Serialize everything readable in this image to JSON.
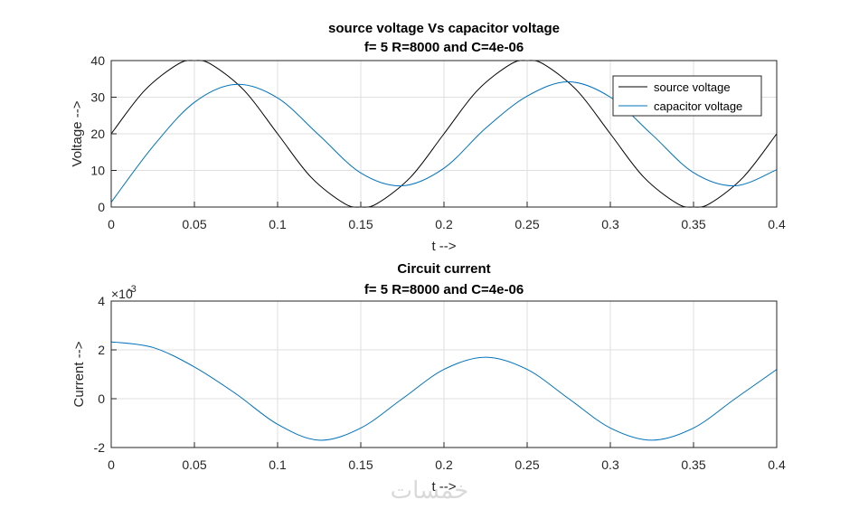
{
  "watermark": "خمسات",
  "chart_data": [
    {
      "type": "line",
      "title": "source voltage Vs capacitor voltage",
      "subtitle": "f= 5   R=8000 and C=4e-06",
      "xlabel": "t -->",
      "ylabel": "Voltage -->",
      "xlim": [
        0,
        0.4
      ],
      "ylim": [
        0,
        40
      ],
      "xticks": [
        "0",
        "0.05",
        "0.1",
        "0.15",
        "0.2",
        "0.25",
        "0.3",
        "0.35",
        "0.4"
      ],
      "yticks": [
        "0",
        "10",
        "20",
        "30",
        "40"
      ],
      "grid": true,
      "legend_position": "top-right",
      "series": [
        {
          "name": "source voltage",
          "color": "#000000",
          "x": [
            0,
            0.02,
            0.04,
            0.05,
            0.06,
            0.08,
            0.1,
            0.12,
            0.14,
            0.15,
            0.16,
            0.18,
            0.2,
            0.22,
            0.24,
            0.25,
            0.26,
            0.28,
            0.3,
            0.32,
            0.34,
            0.35,
            0.36,
            0.38,
            0.4
          ],
          "values": [
            20,
            31.8,
            39.0,
            40,
            39.0,
            31.8,
            20,
            8.2,
            1.0,
            0,
            1.0,
            8.2,
            20,
            31.8,
            39.0,
            40,
            39.0,
            31.8,
            20,
            8.2,
            1.0,
            0,
            1.0,
            8.2,
            20
          ]
        },
        {
          "name": "capacitor voltage",
          "color": "#0072BD",
          "x": [
            0,
            0.025,
            0.05,
            0.075,
            0.1,
            0.125,
            0.15,
            0.175,
            0.2,
            0.225,
            0.25,
            0.275,
            0.3,
            0.325,
            0.35,
            0.375,
            0.4
          ],
          "values": [
            1.3,
            16.5,
            28.6,
            33.5,
            29.8,
            19.6,
            9.3,
            5.8,
            10.6,
            21.5,
            30.3,
            34.2,
            30.0,
            19.8,
            9.4,
            5.8,
            10.2
          ]
        }
      ]
    },
    {
      "type": "line",
      "title": "Circuit current",
      "subtitle": "f= 5   R=8000 and C=4e-06",
      "xlabel": "t -->",
      "ylabel": "Current -->",
      "exponent_label": "×10",
      "exponent_power": "-3",
      "xlim": [
        0,
        0.4
      ],
      "ylim": [
        -2,
        4
      ],
      "xticks": [
        "0",
        "0.05",
        "0.1",
        "0.15",
        "0.2",
        "0.25",
        "0.3",
        "0.35",
        "0.4"
      ],
      "yticks": [
        "-2",
        "0",
        "2",
        "4"
      ],
      "grid": true,
      "series": [
        {
          "color": "#0072BD",
          "x": [
            0,
            0.025,
            0.05,
            0.075,
            0.1,
            0.125,
            0.15,
            0.175,
            0.2,
            0.225,
            0.25,
            0.275,
            0.3,
            0.325,
            0.35,
            0.375,
            0.4
          ],
          "values": [
            2.33,
            2.1,
            1.3,
            0.2,
            -1.05,
            -1.7,
            -1.2,
            0.0,
            1.2,
            1.7,
            1.2,
            0.0,
            -1.2,
            -1.7,
            -1.2,
            0.0,
            1.2
          ]
        }
      ]
    }
  ]
}
